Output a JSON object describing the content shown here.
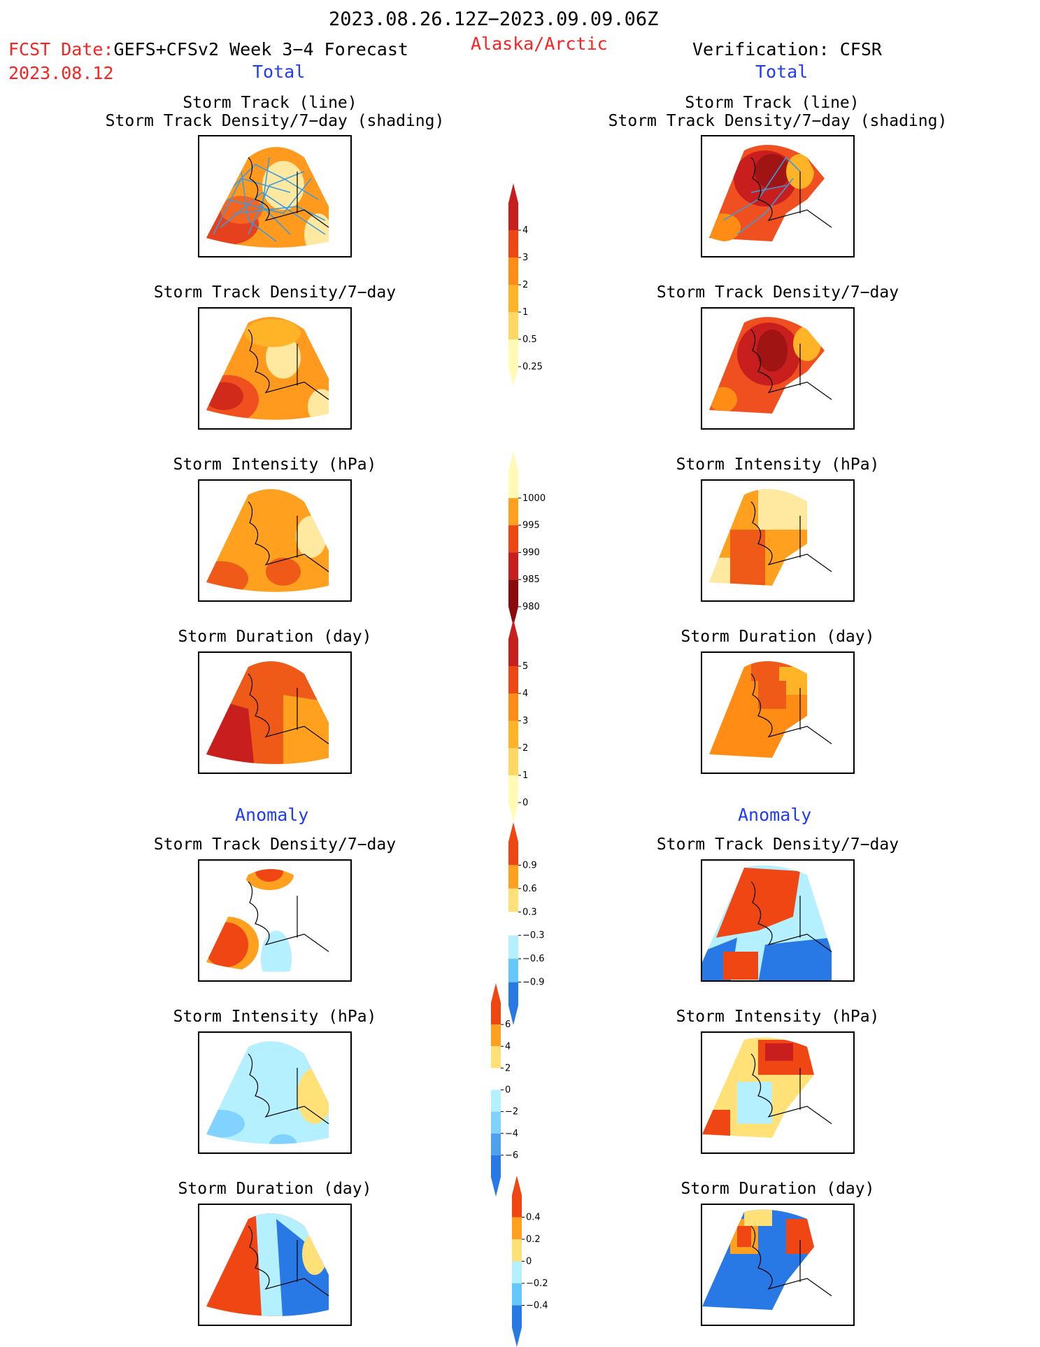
{
  "header": {
    "period": "2023.08.26.12Z−2023.09.09.06Z",
    "fcst_label": "FCST Date:",
    "model": "GEFS+CFSv2 Week 3−4 Forecast",
    "fcst_date": "2023.08.12",
    "region": "Alaska/Arctic",
    "verification": "Verification: CFSR"
  },
  "columns": {
    "left_total": "Total",
    "right_total": "Total",
    "left_anomaly": "Anomaly",
    "right_anomaly": "Anomaly"
  },
  "panel_titles": {
    "track_line": "Storm Track (line)",
    "track_shading": "Storm Track Density/7−day (shading)",
    "density": "Storm Track Density/7−day",
    "intensity": "Storm Intensity (hPa)",
    "duration": "Storm Duration (day)"
  },
  "colorbars": {
    "density": {
      "labels": [
        "4",
        "3",
        "2",
        "1",
        "0.5",
        "0.25"
      ],
      "colors": [
        "#c81e1e",
        "#f04614",
        "#ff8c14",
        "#ffb428",
        "#ffd764",
        "#fffab4"
      ]
    },
    "intensity": {
      "labels": [
        "1000",
        "995",
        "990",
        "985",
        "980"
      ],
      "colors": [
        "#fffab4",
        "#ffa01e",
        "#f04614",
        "#c81e1e",
        "#8c0a0a"
      ]
    },
    "duration": {
      "labels": [
        "5",
        "4",
        "3",
        "2",
        "1",
        "0"
      ],
      "colors": [
        "#c81e1e",
        "#f04614",
        "#ff8c14",
        "#ffb428",
        "#ffd764",
        "#fffab4"
      ]
    },
    "anom_density": {
      "labels": [
        "0.9",
        "0.6",
        "0.3",
        "−0.3",
        "−0.6",
        "−0.9"
      ],
      "colors": [
        "#f04614",
        "#ffa01e",
        "#ffe178",
        "#ffffff",
        "#b4f0ff",
        "#64c8ff",
        "#2878e6"
      ]
    },
    "anom_intensity": {
      "labels": [
        "6",
        "4",
        "2",
        "0",
        "−2",
        "−4",
        "−6"
      ],
      "colors": [
        "#f04614",
        "#ffa01e",
        "#ffe178",
        "#ffffff",
        "#b4f0ff",
        "#82d2ff",
        "#50a0f0",
        "#2878e6"
      ]
    },
    "anom_duration": {
      "labels": [
        "0.4",
        "0.2",
        "0",
        "−0.2",
        "−0.4"
      ],
      "colors": [
        "#f04614",
        "#ffa01e",
        "#ffe178",
        "#b4f0ff",
        "#64c8ff",
        "#2878e6"
      ]
    }
  },
  "colors": {
    "red_text": "#ff2020",
    "blue_text": "#1e3cff",
    "track_line": "#3c9bdc"
  }
}
